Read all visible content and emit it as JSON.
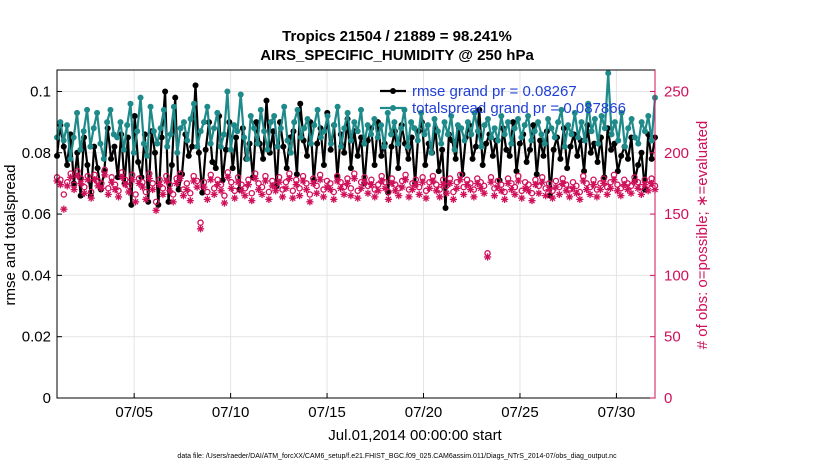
{
  "chart_data": {
    "type": "line",
    "title": "Tropics 21504 / 21889 = 98.241%",
    "subtitle": "AIRS_SPECIFIC_HUMIDITY @ 250 hPa",
    "xlabel": "Jul.01,2014 00:00:00 start",
    "ylabel": "rmse and totalspread",
    "ylabel_right": "# of obs: o=possible; ∗=evaluated",
    "footer": "data file: /Users/raeder/DAI/ATM_forcXX/CAM6_setup/f.e21.FHIST_BGC.f09_025.CAM6assim.011/Diags_NTrS_2014-07/obs_diag_output.nc",
    "xlim": [
      1,
      32
    ],
    "ylim": [
      0,
      0.107
    ],
    "ylim_right": [
      0,
      267.5
    ],
    "x_ticks": [
      5,
      10,
      15,
      20,
      25,
      30
    ],
    "x_tick_labels": [
      "07/05",
      "07/10",
      "07/15",
      "07/20",
      "07/25",
      "07/30"
    ],
    "y_ticks": [
      0,
      0.02,
      0.04,
      0.06,
      0.08,
      0.1
    ],
    "y_tick_labels": [
      "0",
      "0.02",
      "0.04",
      "0.06",
      "0.08",
      "0.1"
    ],
    "y_right_ticks": [
      0,
      50,
      100,
      150,
      200,
      250
    ],
    "y_right_tick_labels": [
      "0",
      "50",
      "100",
      "150",
      "200",
      "250"
    ],
    "grid": true,
    "legend_position": "top-right",
    "series": [
      {
        "name": "rmse",
        "legend": "rmse grand pr = 0.08267",
        "color": "#000000",
        "axis": "left",
        "marker": "filled-circle",
        "values": [
          0.079,
          0.089,
          0.082,
          0.076,
          0.086,
          0.07,
          0.08,
          0.066,
          0.085,
          0.076,
          0.066,
          0.082,
          0.075,
          0.068,
          0.074,
          0.088,
          0.078,
          0.082,
          0.072,
          0.086,
          0.07,
          0.085,
          0.063,
          0.092,
          0.077,
          0.072,
          0.086,
          0.064,
          0.087,
          0.08,
          0.063,
          0.085,
          0.1,
          0.064,
          0.076,
          0.098,
          0.068,
          0.073,
          0.086,
          0.079,
          0.082,
          0.102,
          0.08,
          0.067,
          0.081,
          0.09,
          0.077,
          0.075,
          0.092,
          0.071,
          0.081,
          0.09,
          0.075,
          0.085,
          0.068,
          0.088,
          0.078,
          0.083,
          0.072,
          0.09,
          0.083,
          0.078,
          0.097,
          0.08,
          0.087,
          0.069,
          0.09,
          0.082,
          0.075,
          0.085,
          0.087,
          0.073,
          0.096,
          0.084,
          0.079,
          0.09,
          0.071,
          0.083,
          0.088,
          0.076,
          0.093,
          0.081,
          0.089,
          0.072,
          0.086,
          0.08,
          0.091,
          0.075,
          0.087,
          0.079,
          0.085,
          0.07,
          0.084,
          0.088,
          0.076,
          0.09,
          0.079,
          0.083,
          0.067,
          0.082,
          0.087,
          0.075,
          0.089,
          0.083,
          0.078,
          0.085,
          0.07,
          0.087,
          0.09,
          0.076,
          0.083,
          0.08,
          0.088,
          0.074,
          0.081,
          0.062,
          0.086,
          0.084,
          0.078,
          0.088,
          0.073,
          0.085,
          0.089,
          0.078,
          0.082,
          0.094,
          0.076,
          0.083,
          0.086,
          0.079,
          0.084,
          0.071,
          0.088,
          0.081,
          0.079,
          0.09,
          0.074,
          0.083,
          0.086,
          0.077,
          0.081,
          0.089,
          0.073,
          0.084,
          0.079,
          0.087,
          0.066,
          0.081,
          0.085,
          0.078,
          0.088,
          0.075,
          0.082,
          0.086,
          0.079,
          0.084,
          0.074,
          0.089,
          0.08,
          0.083,
          0.077,
          0.085,
          0.072,
          0.088,
          0.081,
          0.083,
          0.074,
          0.079,
          0.082,
          0.078,
          0.085,
          0.071,
          0.076,
          0.08,
          0.068,
          0.086,
          0.078,
          0.085
        ]
      },
      {
        "name": "totalspread",
        "legend": "totalspread grand pr = 0.087866",
        "color": "#1f8a8a",
        "axis": "left",
        "marker": "filled-circle",
        "values": [
          0.085,
          0.09,
          0.084,
          0.089,
          0.078,
          0.085,
          0.093,
          0.081,
          0.087,
          0.094,
          0.082,
          0.088,
          0.093,
          0.083,
          0.078,
          0.09,
          0.094,
          0.086,
          0.085,
          0.09,
          0.081,
          0.089,
          0.096,
          0.08,
          0.087,
          0.098,
          0.083,
          0.079,
          0.095,
          0.087,
          0.083,
          0.088,
          0.094,
          0.082,
          0.086,
          0.095,
          0.08,
          0.088,
          0.09,
          0.084,
          0.091,
          0.096,
          0.082,
          0.087,
          0.09,
          0.095,
          0.083,
          0.088,
          0.093,
          0.082,
          0.086,
          0.1,
          0.081,
          0.089,
          0.087,
          0.099,
          0.085,
          0.078,
          0.092,
          0.088,
          0.083,
          0.094,
          0.087,
          0.081,
          0.09,
          0.092,
          0.082,
          0.088,
          0.095,
          0.084,
          0.08,
          0.09,
          0.094,
          0.085,
          0.088,
          0.091,
          0.083,
          0.089,
          0.094,
          0.085,
          0.087,
          0.092,
          0.083,
          0.089,
          0.095,
          0.082,
          0.088,
          0.093,
          0.084,
          0.09,
          0.087,
          0.094,
          0.083,
          0.089,
          0.086,
          0.091,
          0.085,
          0.089,
          0.082,
          0.093,
          0.086,
          0.09,
          0.083,
          0.088,
          0.094,
          0.082,
          0.09,
          0.088,
          0.084,
          0.093,
          0.086,
          0.089,
          0.08,
          0.091,
          0.087,
          0.083,
          0.09,
          0.086,
          0.092,
          0.081,
          0.089,
          0.088,
          0.084,
          0.09,
          0.086,
          0.093,
          0.087,
          0.082,
          0.089,
          0.091,
          0.085,
          0.088,
          0.084,
          0.092,
          0.086,
          0.09,
          0.083,
          0.088,
          0.091,
          0.085,
          0.089,
          0.092,
          0.084,
          0.087,
          0.09,
          0.086,
          0.083,
          0.091,
          0.088,
          0.085,
          0.09,
          0.094,
          0.082,
          0.089,
          0.086,
          0.093,
          0.085,
          0.09,
          0.084,
          0.096,
          0.087,
          0.091,
          0.083,
          0.092,
          0.088,
          0.106,
          0.086,
          0.09,
          0.084,
          0.093,
          0.082,
          0.088,
          0.091,
          0.085,
          0.083,
          0.09,
          0.087,
          0.092,
          0.084,
          0.098
        ]
      },
      {
        "name": "possible",
        "legend": "o=possible",
        "color": "#d0105a",
        "axis": "right",
        "marker": "open-circle",
        "values": [
          180,
          178,
          166,
          176,
          183,
          174,
          185,
          179,
          172,
          181,
          168,
          182,
          177,
          175,
          186,
          171,
          180,
          174,
          169,
          184,
          178,
          173,
          182,
          166,
          179,
          176,
          168,
          183,
          175,
          160,
          178,
          171,
          181,
          174,
          166,
          179,
          183,
          170,
          175,
          167,
          181,
          177,
          143,
          176,
          168,
          182,
          171,
          178,
          174,
          165,
          184,
          176,
          169,
          180,
          174,
          171,
          178,
          167,
          183,
          175,
          172,
          181,
          168,
          177,
          174,
          180,
          170,
          176,
          183,
          169,
          178,
          171,
          181,
          175,
          166,
          179,
          173,
          182,
          170,
          177,
          175,
          168,
          181,
          176,
          172,
          179,
          171,
          183,
          169,
          176,
          180,
          173,
          178,
          170,
          174,
          181,
          176,
          168,
          179,
          174,
          171,
          177,
          182,
          170,
          175,
          178,
          172,
          180,
          169,
          176,
          181,
          174,
          170,
          178,
          173,
          179,
          168,
          176,
          182,
          172,
          178,
          175,
          170,
          179,
          176,
          173,
          118,
          180,
          171,
          177,
          174,
          168,
          179,
          175,
          172,
          181,
          169,
          176,
          174,
          167,
          178,
          173,
          180,
          171,
          175,
          169,
          177,
          172,
          179,
          174,
          170,
          176,
          173,
          168,
          181,
          175,
          172,
          178,
          170,
          175,
          179,
          172,
          176,
          182,
          174,
          171,
          178,
          175,
          173,
          180,
          176,
          172,
          178,
          174,
          179,
          173
        ]
      },
      {
        "name": "evaluated",
        "legend": "∗=evaluated",
        "color": "#d0105a",
        "axis": "right",
        "marker": "asterisk",
        "values": [
          177,
          174,
          154,
          173,
          180,
          170,
          181,
          175,
          167,
          178,
          163,
          178,
          173,
          171,
          182,
          166,
          176,
          170,
          164,
          180,
          174,
          168,
          178,
          160,
          175,
          172,
          162,
          179,
          170,
          153,
          174,
          166,
          177,
          169,
          160,
          175,
          179,
          165,
          170,
          161,
          177,
          172,
          138,
          172,
          162,
          178,
          166,
          174,
          169,
          159,
          180,
          171,
          163,
          176,
          169,
          165,
          174,
          161,
          179,
          170,
          166,
          177,
          162,
          173,
          169,
          176,
          164,
          171,
          179,
          163,
          174,
          165,
          177,
          170,
          160,
          175,
          167,
          178,
          164,
          172,
          170,
          162,
          177,
          171,
          166,
          175,
          165,
          179,
          163,
          171,
          176,
          167,
          174,
          164,
          169,
          177,
          171,
          162,
          175,
          169,
          165,
          172,
          178,
          164,
          170,
          174,
          166,
          176,
          163,
          171,
          177,
          169,
          164,
          174,
          167,
          175,
          162,
          171,
          178,
          166,
          174,
          170,
          164,
          175,
          171,
          167,
          115,
          176,
          165,
          172,
          169,
          162,
          175,
          170,
          166,
          177,
          163,
          171,
          169,
          161,
          174,
          167,
          176,
          165,
          170,
          163,
          172,
          166,
          175,
          169,
          164,
          171,
          167,
          162,
          177,
          170,
          166,
          174,
          164,
          170,
          175,
          166,
          171,
          178,
          169,
          165,
          174,
          170,
          167,
          176,
          171,
          166,
          174,
          169,
          175,
          170
        ]
      }
    ]
  }
}
